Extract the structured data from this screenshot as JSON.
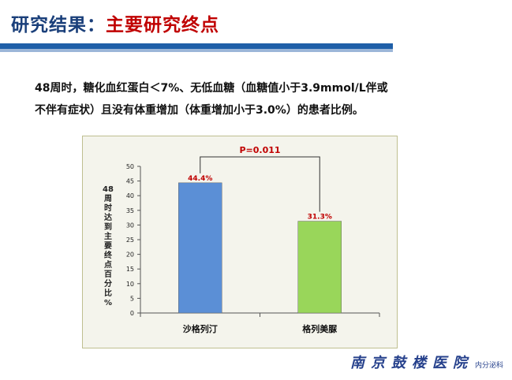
{
  "header": {
    "title_prefix": "研究结果：",
    "title_highlight": "主要研究终点"
  },
  "description": {
    "line1": "48周时，糖化血红蛋白＜7%、无低血糖（血糖值小于3.9mmol/L伴或",
    "line2": "不伴有症状）且没有体重增加（体重增加小于3.0%）的患者比例。"
  },
  "chart_data": {
    "type": "bar",
    "categories": [
      "沙格列汀",
      "格列美脲"
    ],
    "values": [
      44.4,
      31.3
    ],
    "data_labels": [
      "44.4%",
      "31.3%"
    ],
    "bar_colors": [
      "#5b8fd6",
      "#99d65a"
    ],
    "label_color": "#c00000",
    "ylabel": "48周时达到主要终点百分比%",
    "ylim": [
      0,
      50
    ],
    "yticks": [
      0,
      5,
      10,
      15,
      20,
      25,
      30,
      35,
      40,
      45,
      50
    ],
    "annotation": "P=0.011",
    "annotation_color": "#c00000",
    "grid": false
  },
  "footer": {
    "logo": "南京鼓楼医院",
    "department": "内分泌科"
  }
}
